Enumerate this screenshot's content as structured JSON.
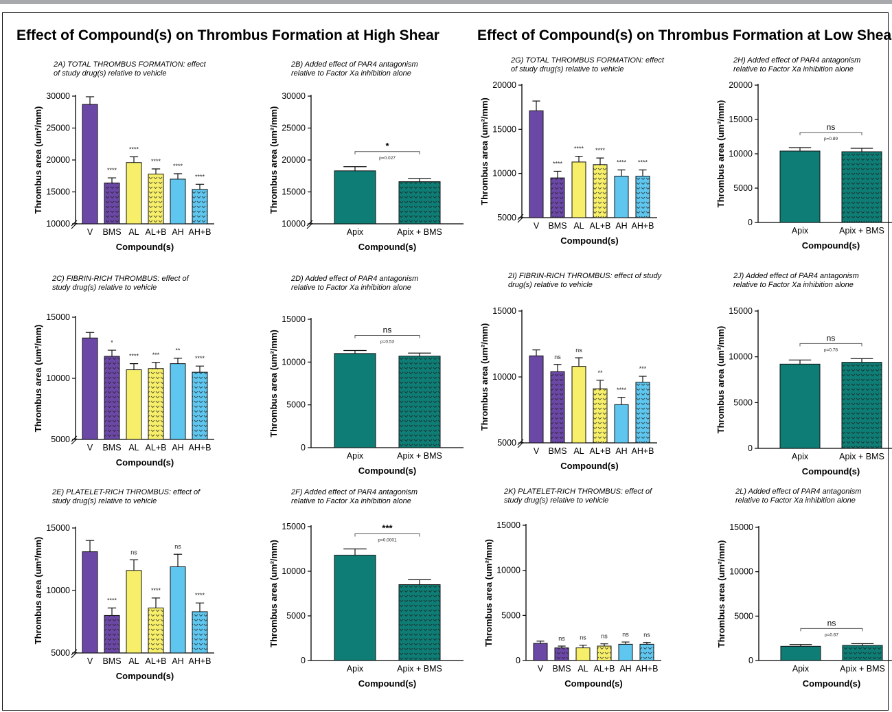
{
  "section_titles": {
    "high": "Effect of Compound(s) on Thrombus Formation at High Shear",
    "low": "Effect of Compound(s) on Thrombus Formation at Low Shear"
  },
  "colors": {
    "V": "#6b48a6",
    "BMS": "#6b48a6",
    "AL": "#f7ef6a",
    "AL+B": "#f7ef6a",
    "AH": "#5fc7ef",
    "AH+B": "#5fc7ef",
    "Apix": "#0e7d75",
    "Apix + BMS": "#0e7d75"
  },
  "chart_data": [
    {
      "id": "2A",
      "type": "bar",
      "title": [
        "2A) TOTAL THROMBUS FORMATION:  effect",
        "of study drug(s) relative to vehicle"
      ],
      "xlabel": "Compound(s)",
      "ylabel": "Thrombus area (um²/mm)",
      "ylim": [
        10000,
        30000
      ],
      "yticks": [
        10000,
        15000,
        20000,
        25000,
        30000
      ],
      "axis_break": true,
      "categories": [
        "V",
        "BMS",
        "AL",
        "AL+B",
        "AH",
        "AH+B"
      ],
      "values": [
        28700,
        16400,
        19600,
        17800,
        17000,
        15400
      ],
      "errors": [
        1200,
        800,
        900,
        800,
        850,
        800
      ],
      "patterned": [
        false,
        true,
        false,
        true,
        false,
        true
      ],
      "annotations": [
        "",
        "****",
        "****",
        "****",
        "****",
        "****"
      ]
    },
    {
      "id": "2B",
      "type": "bar",
      "title": [
        "2B) Added effect of PAR4 antagonism",
        "relative to Factor Xa inhibition alone"
      ],
      "xlabel": "Compound(s)",
      "ylabel": "Thrombus area (um²/mm)",
      "ylim": [
        10000,
        30000
      ],
      "yticks": [
        10000,
        15000,
        20000,
        25000,
        30000
      ],
      "axis_break": true,
      "categories": [
        "Apix",
        "Apix + BMS"
      ],
      "values": [
        18300,
        16600
      ],
      "errors": [
        650,
        500
      ],
      "patterned": [
        false,
        true
      ],
      "comparison": {
        "label": "*",
        "p": "p=0.027"
      }
    },
    {
      "id": "2C",
      "type": "bar",
      "title": [
        "2C) FIBRIN-RICH THROMBUS:  effect of",
        "study drug(s) relative to vehicle"
      ],
      "xlabel": "Compound(s)",
      "ylabel": "Thrombus area (um²/mm)",
      "ylim": [
        5000,
        15000
      ],
      "yticks": [
        5000,
        10000,
        15000
      ],
      "axis_break": true,
      "categories": [
        "V",
        "BMS",
        "AL",
        "AL+B",
        "AH",
        "AH+B"
      ],
      "values": [
        13300,
        11800,
        10700,
        10800,
        11200,
        10500
      ],
      "errors": [
        450,
        500,
        500,
        500,
        450,
        500
      ],
      "patterned": [
        false,
        true,
        false,
        true,
        false,
        true
      ],
      "annotations": [
        "",
        "*",
        "****",
        "***",
        "**",
        "****"
      ]
    },
    {
      "id": "2D",
      "type": "bar",
      "title": [
        "2D) Added effect of PAR4 antagonism",
        "relative to Factor Xa inhibition alone"
      ],
      "xlabel": "Compound(s)",
      "ylabel": "Thrombus area (um²/mm)",
      "ylim": [
        0,
        15000
      ],
      "yticks": [
        0,
        5000,
        10000,
        15000
      ],
      "axis_break": false,
      "categories": [
        "Apix",
        "Apix + BMS"
      ],
      "values": [
        11000,
        10700
      ],
      "errors": [
        350,
        350
      ],
      "patterned": [
        false,
        true
      ],
      "comparison": {
        "label": "ns",
        "p": "p=0.53"
      }
    },
    {
      "id": "2E",
      "type": "bar",
      "title": [
        "2E) PLATELET-RICH THROMBUS:  effect of",
        "study drug(s) relative to vehicle"
      ],
      "xlabel": "Compound(s)",
      "ylabel": "Thrombus area (um²/mm)",
      "ylim": [
        5000,
        15000
      ],
      "yticks": [
        5000,
        10000,
        15000
      ],
      "axis_break": true,
      "categories": [
        "V",
        "BMS",
        "AL",
        "AL+B",
        "AH",
        "AH+B"
      ],
      "values": [
        13100,
        8000,
        11600,
        8600,
        11900,
        8300
      ],
      "errors": [
        900,
        600,
        850,
        800,
        1000,
        700
      ],
      "patterned": [
        false,
        true,
        false,
        true,
        false,
        true
      ],
      "annotations": [
        "",
        "****",
        "ns",
        "****",
        "ns",
        "****"
      ]
    },
    {
      "id": "2F",
      "type": "bar",
      "title": [
        "2F) Added effect of PAR4 antagonism",
        "relative to Factor Xa inhibition alone"
      ],
      "xlabel": "Compound(s)",
      "ylabel": "Thrombus area (um²/mm)",
      "ylim": [
        0,
        15000
      ],
      "yticks": [
        0,
        5000,
        10000,
        15000
      ],
      "axis_break": false,
      "categories": [
        "Apix",
        "Apix + BMS"
      ],
      "values": [
        11800,
        8500
      ],
      "errors": [
        700,
        550
      ],
      "patterned": [
        false,
        true
      ],
      "comparison": {
        "label": "***",
        "p": "p=0.0001"
      }
    },
    {
      "id": "2G",
      "type": "bar",
      "title": [
        "2G) TOTAL THROMBUS FORMATION:  effect",
        "of study drug(s) relative to vehicle"
      ],
      "xlabel": "Compound(s)",
      "ylabel": "Thrombus area (um²/mm)",
      "ylim": [
        5000,
        20000
      ],
      "yticks": [
        5000,
        10000,
        15000,
        20000
      ],
      "axis_break": true,
      "categories": [
        "V",
        "BMS",
        "AL",
        "AL+B",
        "AH",
        "AH+B"
      ],
      "values": [
        17100,
        9500,
        11300,
        11000,
        9700,
        9700
      ],
      "errors": [
        1100,
        750,
        650,
        750,
        700,
        700
      ],
      "patterned": [
        false,
        true,
        false,
        true,
        false,
        true
      ],
      "annotations": [
        "",
        "****",
        "****",
        "****",
        "****",
        "****"
      ]
    },
    {
      "id": "2H",
      "type": "bar",
      "title": [
        "2H) Added effect of PAR4 antagonism",
        "relative to Factor Xa inhibition alone"
      ],
      "xlabel": "Compound(s)",
      "ylabel": "Thrombus area (um²/mm)",
      "ylim": [
        0,
        20000
      ],
      "yticks": [
        0,
        5000,
        10000,
        15000,
        20000
      ],
      "axis_break": false,
      "categories": [
        "Apix",
        "Apix + BMS"
      ],
      "values": [
        10400,
        10300
      ],
      "errors": [
        500,
        500
      ],
      "patterned": [
        false,
        true
      ],
      "comparison": {
        "label": "ns",
        "p": "p=0.89"
      }
    },
    {
      "id": "2I",
      "type": "bar",
      "title": [
        "2I) FIBRIN-RICH THROMBUS:  effect of study",
        "drug(s) relative to vehicle"
      ],
      "xlabel": "Compound(s)",
      "ylabel": "Thrombus area (um²/mm)",
      "ylim": [
        5000,
        15000
      ],
      "yticks": [
        5000,
        10000,
        15000
      ],
      "axis_break": true,
      "categories": [
        "V",
        "BMS",
        "AL",
        "AL+B",
        "AH",
        "AH+B"
      ],
      "values": [
        11600,
        10400,
        10800,
        9100,
        7900,
        9600
      ],
      "errors": [
        450,
        550,
        650,
        650,
        550,
        450
      ],
      "patterned": [
        false,
        true,
        false,
        true,
        false,
        true
      ],
      "annotations": [
        "",
        "ns",
        "ns",
        "**",
        "****",
        "***"
      ]
    },
    {
      "id": "2J",
      "type": "bar",
      "title": [
        "2J) Added effect of PAR4 antagonism",
        "relative to Factor Xa inhibition alone"
      ],
      "xlabel": "Compound(s)",
      "ylabel": "Thrombus area (um²/mm)",
      "ylim": [
        0,
        15000
      ],
      "yticks": [
        0,
        5000,
        10000,
        15000
      ],
      "axis_break": false,
      "categories": [
        "Apix",
        "Apix + BMS"
      ],
      "values": [
        9200,
        9400
      ],
      "errors": [
        450,
        400
      ],
      "patterned": [
        false,
        true
      ],
      "comparison": {
        "label": "ns",
        "p": "p=0.78"
      }
    },
    {
      "id": "2K",
      "type": "bar",
      "title": [
        "2K) PLATELET-RICH THROMBUS:  effect of",
        "study drug(s) relative to vehicle"
      ],
      "xlabel": "Compound(s)",
      "ylabel": "Thrombus area (um²/mm)",
      "ylim": [
        0,
        15000
      ],
      "yticks": [
        0,
        5000,
        10000,
        15000
      ],
      "axis_break": false,
      "categories": [
        "V",
        "BMS",
        "AL",
        "AL+B",
        "AH",
        "AH+B"
      ],
      "values": [
        1900,
        1400,
        1400,
        1600,
        1800,
        1800
      ],
      "errors": [
        250,
        200,
        300,
        250,
        250,
        200
      ],
      "patterned": [
        false,
        true,
        false,
        true,
        false,
        true
      ],
      "annotations": [
        "",
        "ns",
        "ns",
        "ns",
        "ns",
        "ns"
      ]
    },
    {
      "id": "2L",
      "type": "bar",
      "title": [
        "2L) Added effect of PAR4 antagonism",
        "relative to Factor Xa inhibition alone"
      ],
      "xlabel": "Compound(s)",
      "ylabel": "Thrombus area (um²/mm)",
      "ylim": [
        0,
        15000
      ],
      "yticks": [
        0,
        5000,
        10000,
        15000
      ],
      "axis_break": false,
      "categories": [
        "Apix",
        "Apix + BMS"
      ],
      "values": [
        1600,
        1700
      ],
      "errors": [
        200,
        200
      ],
      "patterned": [
        false,
        true
      ],
      "comparison": {
        "label": "ns",
        "p": "p=0.67"
      }
    }
  ]
}
